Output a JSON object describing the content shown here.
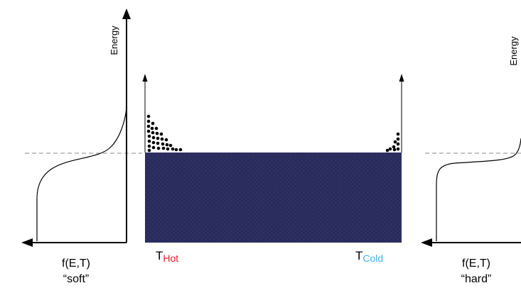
{
  "left_panel": {
    "axis_label": "Energy",
    "function_label": "f(E,T)",
    "caption": "“soft”"
  },
  "middle_panel": {
    "hot_label": {
      "base": "T",
      "subscript": "Hot"
    },
    "cold_label": {
      "base": "T",
      "subscript": "Cold"
    }
  },
  "right_panel": {
    "axis_label": "Energy",
    "function_label": "f(E,T)",
    "caption": "“hard”"
  },
  "colors": {
    "filled_states": "#2b2c5e",
    "hot_subscript": "#e8202a",
    "cold_subscript": "#3fb2e6",
    "axis": "#000000",
    "fermi_level_dash": "#8a8a8a"
  }
}
